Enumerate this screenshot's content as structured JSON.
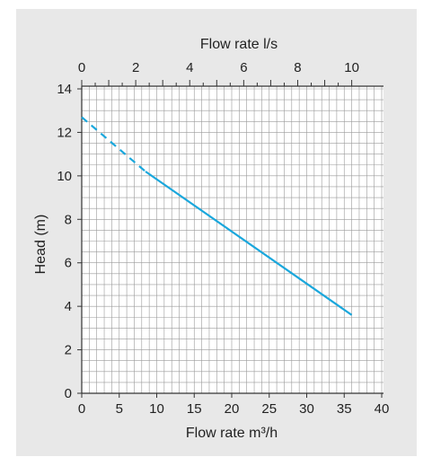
{
  "chart_data": {
    "type": "line",
    "title": "",
    "top_axis": {
      "label": "Flow rate l/s",
      "range": [
        0,
        10
      ],
      "tick_labels": [
        "0",
        "2",
        "4",
        "6",
        "8",
        "10"
      ]
    },
    "x_axis": {
      "label": "Flow rate m³/h",
      "range": [
        0,
        40
      ],
      "tick_labels": [
        "0",
        "5",
        "10",
        "15",
        "20",
        "25",
        "30",
        "35",
        "40"
      ]
    },
    "y_axis": {
      "label": "Head (m)",
      "range": [
        0,
        14
      ],
      "tick_labels": [
        "0",
        "2",
        "4",
        "6",
        "8",
        "10",
        "12",
        "14"
      ]
    },
    "grid": true,
    "series": [
      {
        "color": "#1aa7dc",
        "segments": [
          {
            "style": "dashed",
            "points": [
              [
                0,
                12.7
              ],
              [
                8.5,
                10.2
              ]
            ]
          },
          {
            "style": "solid",
            "points": [
              [
                8.5,
                10.2
              ],
              [
                36,
                3.6
              ]
            ]
          }
        ]
      }
    ]
  }
}
